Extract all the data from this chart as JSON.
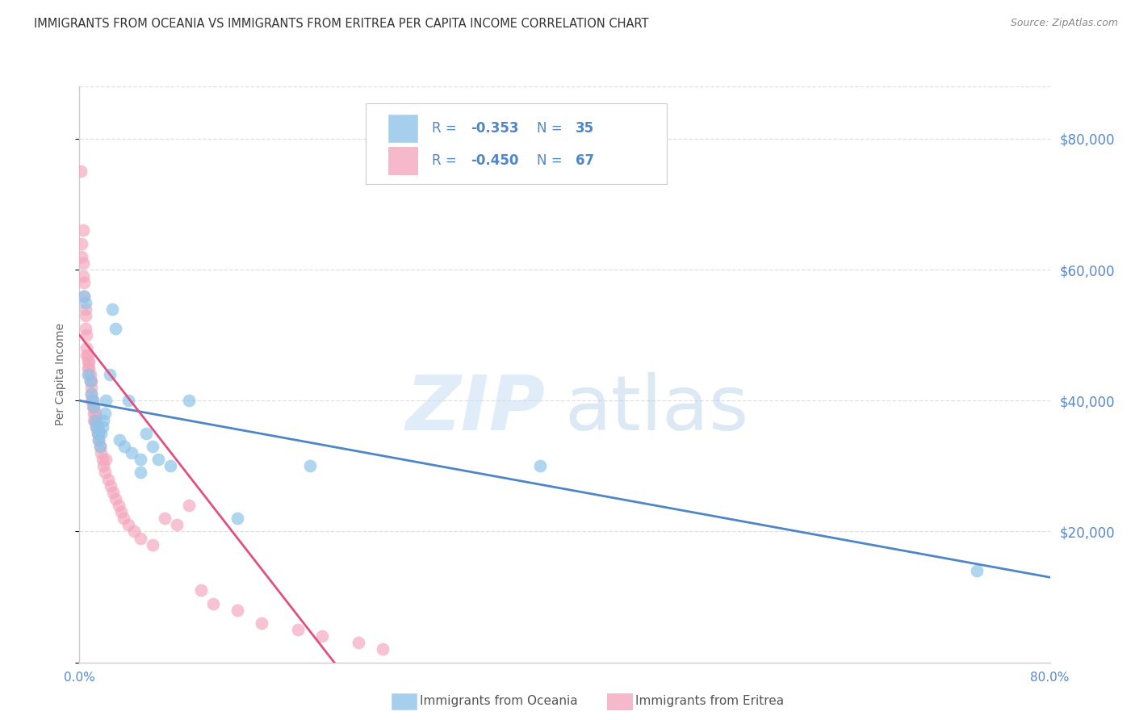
{
  "title": "IMMIGRANTS FROM OCEANIA VS IMMIGRANTS FROM ERITREA PER CAPITA INCOME CORRELATION CHART",
  "source": "Source: ZipAtlas.com",
  "ylabel": "Per Capita Income",
  "watermark_zip": "ZIP",
  "watermark_atlas": "atlas",
  "xlim": [
    0.0,
    0.8
  ],
  "ylim": [
    0,
    88000
  ],
  "yticks": [
    0,
    20000,
    40000,
    60000,
    80000
  ],
  "xticks": [
    0.0,
    0.2,
    0.4,
    0.6,
    0.8
  ],
  "xtick_labels": [
    "0.0%",
    "",
    "",
    "",
    "80.0%"
  ],
  "ytick_labels_right": [
    "$20,000",
    "$40,000",
    "$60,000",
    "$80,000"
  ],
  "legend_text_color": "#4f86c6",
  "label_blue": "Immigrants from Oceania",
  "label_pink": "Immigrants from Eritrea",
  "blue_color": "#8fc4e8",
  "pink_color": "#f4a8be",
  "blue_line_color": "#4f86c6",
  "pink_line_color": "#e05080",
  "title_color": "#333333",
  "source_color": "#888888",
  "axis_color": "#cccccc",
  "tick_label_color": "#5588cc",
  "grid_color": "#e0e0e0",
  "blue_scatter_x": [
    0.004,
    0.005,
    0.007,
    0.009,
    0.01,
    0.011,
    0.012,
    0.013,
    0.014,
    0.015,
    0.016,
    0.017,
    0.018,
    0.019,
    0.02,
    0.021,
    0.022,
    0.025,
    0.027,
    0.03,
    0.033,
    0.037,
    0.04,
    0.043,
    0.05,
    0.055,
    0.06,
    0.065,
    0.075,
    0.09,
    0.13,
    0.19,
    0.38,
    0.74,
    0.05
  ],
  "blue_scatter_y": [
    56000,
    55000,
    44000,
    43000,
    41000,
    40000,
    39000,
    37000,
    36000,
    35000,
    34000,
    33000,
    35000,
    36000,
    37000,
    38000,
    40000,
    44000,
    54000,
    51000,
    34000,
    33000,
    40000,
    32000,
    31000,
    35000,
    33000,
    31000,
    30000,
    40000,
    22000,
    30000,
    30000,
    14000,
    29000
  ],
  "pink_scatter_x": [
    0.001,
    0.002,
    0.002,
    0.003,
    0.003,
    0.003,
    0.004,
    0.004,
    0.005,
    0.005,
    0.005,
    0.006,
    0.006,
    0.006,
    0.007,
    0.007,
    0.007,
    0.008,
    0.008,
    0.008,
    0.009,
    0.009,
    0.01,
    0.01,
    0.01,
    0.01,
    0.011,
    0.011,
    0.012,
    0.012,
    0.012,
    0.013,
    0.013,
    0.014,
    0.014,
    0.015,
    0.015,
    0.016,
    0.016,
    0.017,
    0.018,
    0.019,
    0.02,
    0.021,
    0.022,
    0.024,
    0.026,
    0.028,
    0.03,
    0.032,
    0.034,
    0.036,
    0.04,
    0.045,
    0.05,
    0.06,
    0.07,
    0.08,
    0.09,
    0.1,
    0.11,
    0.13,
    0.15,
    0.18,
    0.2,
    0.23,
    0.25
  ],
  "pink_scatter_y": [
    75000,
    64000,
    62000,
    66000,
    61000,
    59000,
    58000,
    56000,
    54000,
    53000,
    51000,
    50000,
    48000,
    47000,
    47000,
    46000,
    45000,
    46000,
    45000,
    44000,
    44000,
    43000,
    43000,
    42000,
    41000,
    40000,
    40000,
    39000,
    39000,
    38000,
    37000,
    38000,
    37000,
    37000,
    36000,
    36000,
    35000,
    35000,
    34000,
    33000,
    32000,
    31000,
    30000,
    29000,
    31000,
    28000,
    27000,
    26000,
    25000,
    24000,
    23000,
    22000,
    21000,
    20000,
    19000,
    18000,
    22000,
    21000,
    24000,
    11000,
    9000,
    8000,
    6000,
    5000,
    4000,
    3000,
    2000
  ],
  "blue_trendline_x": [
    0.0,
    0.8
  ],
  "blue_trendline_y": [
    40000,
    13000
  ],
  "pink_trendline_x": [
    0.0,
    0.21
  ],
  "pink_trendline_y": [
    50000,
    0
  ]
}
